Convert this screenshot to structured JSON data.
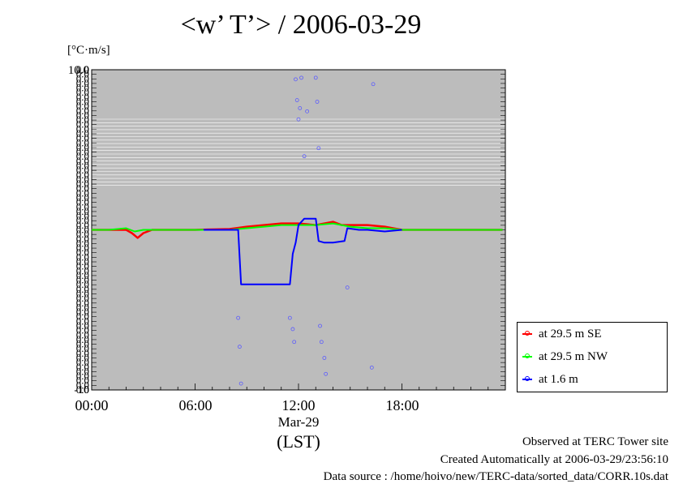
{
  "chart_data": {
    "type": "line",
    "title": "<w’ T’> / 2006-03-29",
    "ylabel": "[°C·m/s]",
    "xlabel": "(LST)",
    "x_date_label": "Mar-29",
    "x_ticks": [
      "00:00",
      "06:00",
      "12:00",
      "18:00"
    ],
    "xlim": [
      "00:00",
      "24:00"
    ],
    "ylim": [
      -10,
      10
    ],
    "y_top_tick": "10.0",
    "y_bottom_tick": "-10",
    "grid": false,
    "background": "#bcbcbc",
    "legend_position": "bottom-right",
    "series": [
      {
        "name": "at 29.5 m SE",
        "color": "#ff0000",
        "x": [
          "00:00",
          "01:00",
          "02:00",
          "02:20",
          "02:40",
          "03:00",
          "03:30",
          "04:00",
          "06:00",
          "08:00",
          "09:00",
          "10:00",
          "11:00",
          "12:00",
          "13:00",
          "14:00",
          "14:30",
          "15:00",
          "16:00",
          "17:00",
          "18:00",
          "20:00",
          "22:00",
          "23:50"
        ],
        "y": [
          0.0,
          0.0,
          0.0,
          -0.2,
          -0.5,
          -0.2,
          0.0,
          0.0,
          0.0,
          0.05,
          0.2,
          0.3,
          0.4,
          0.4,
          0.3,
          0.5,
          0.3,
          0.3,
          0.3,
          0.2,
          0.0,
          0.0,
          0.0,
          0.0
        ]
      },
      {
        "name": "at 29.5 m NW",
        "color": "#00ff00",
        "x": [
          "00:00",
          "01:00",
          "02:00",
          "02:30",
          "03:00",
          "04:00",
          "06:00",
          "08:00",
          "09:00",
          "10:00",
          "11:00",
          "12:00",
          "13:00",
          "14:00",
          "15:00",
          "16:00",
          "17:00",
          "18:00",
          "20:00",
          "22:00",
          "23:50"
        ],
        "y": [
          0.0,
          0.0,
          0.1,
          -0.1,
          0.0,
          0.0,
          0.0,
          0.0,
          0.1,
          0.2,
          0.3,
          0.3,
          0.3,
          0.4,
          0.2,
          0.1,
          0.1,
          0.0,
          0.0,
          0.0,
          0.0
        ]
      },
      {
        "name": "at 1.6 m",
        "color": "#0000ff",
        "x": [
          "06:30",
          "07:00",
          "08:00",
          "08:30",
          "08:40",
          "09:30",
          "10:30",
          "11:30",
          "11:40",
          "11:50",
          "12:00",
          "12:20",
          "12:40",
          "13:00",
          "13:10",
          "13:30",
          "14:00",
          "14:40",
          "14:50",
          "15:30",
          "16:00",
          "17:00",
          "18:00"
        ],
        "y": [
          0.0,
          0.0,
          0.0,
          0.0,
          -3.4,
          -3.4,
          -3.4,
          -3.4,
          -1.5,
          -0.8,
          0.3,
          0.7,
          0.7,
          0.7,
          -0.7,
          -0.8,
          -0.8,
          -0.7,
          0.1,
          0.0,
          0.0,
          -0.1,
          0.0
        ]
      }
    ],
    "scatter_points_1_6m": {
      "x": [
        "08:30",
        "08:35",
        "08:40",
        "11:30",
        "11:40",
        "11:45",
        "11:50",
        "11:55",
        "12:00",
        "12:05",
        "12:10",
        "12:20",
        "12:30",
        "13:00",
        "13:05",
        "13:10",
        "13:15",
        "13:20",
        "13:30",
        "13:35",
        "14:50",
        "16:15",
        "16:20"
      ],
      "y": [
        -5.5,
        -7.3,
        -9.6,
        -5.5,
        -6.2,
        -7.0,
        9.4,
        8.1,
        6.9,
        7.6,
        9.5,
        4.6,
        7.4,
        9.5,
        8.0,
        5.1,
        -6.0,
        -7.0,
        -8.0,
        -9.0,
        -3.6,
        -8.6,
        9.1
      ]
    }
  },
  "legend": {
    "items": [
      {
        "label": "at 29.5 m SE",
        "color": "#ff0000"
      },
      {
        "label": "at 29.5 m NW",
        "color": "#00ff00"
      },
      {
        "label": "at 1.6 m",
        "color": "#0000ff"
      }
    ]
  },
  "footer": {
    "line1": "Observed at TERC Tower site",
    "line2": "Created Automatically at 2006-03-29/23:56:10",
    "line3": "Data source : /home/hoivo/new/TERC-data/sorted_data/CORR.10s.dat"
  }
}
